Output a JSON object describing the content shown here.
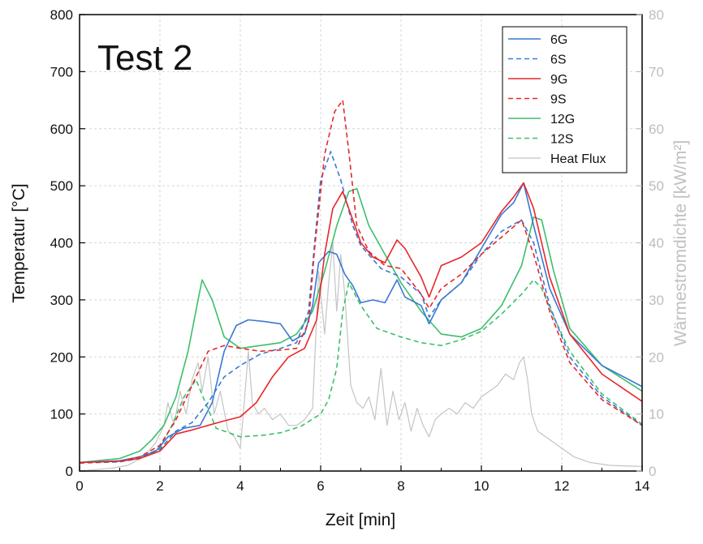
{
  "chart_data": {
    "type": "line",
    "annotation": "Test 2",
    "xlabel": "Zeit [min]",
    "ylabel": "Temperatur [°C]",
    "y2label": "Wärmestromdichte [kW/m²]",
    "xlim": [
      0,
      14
    ],
    "ylim": [
      0,
      800
    ],
    "y2lim": [
      0,
      80
    ],
    "xticks": [
      0,
      2,
      4,
      6,
      8,
      10,
      12,
      14
    ],
    "yticks": [
      0,
      100,
      200,
      300,
      400,
      500,
      600,
      700,
      800
    ],
    "y2ticks": [
      0,
      10,
      20,
      30,
      40,
      50,
      60,
      70,
      80
    ],
    "grid": true,
    "legend_position": "top-right",
    "series": [
      {
        "name": "6G",
        "axis": "left",
        "color": "#3a78d4",
        "dash": "solid",
        "points": [
          [
            0,
            15
          ],
          [
            1,
            18
          ],
          [
            1.5,
            25
          ],
          [
            1.9,
            35
          ],
          [
            2.2,
            60
          ],
          [
            2.6,
            75
          ],
          [
            3,
            80
          ],
          [
            3.3,
            120
          ],
          [
            3.6,
            210
          ],
          [
            3.9,
            255
          ],
          [
            4.2,
            265
          ],
          [
            4.6,
            262
          ],
          [
            5,
            258
          ],
          [
            5.3,
            228
          ],
          [
            5.6,
            240
          ],
          [
            5.8,
            290
          ],
          [
            5.95,
            365
          ],
          [
            6.2,
            385
          ],
          [
            6.4,
            380
          ],
          [
            6.6,
            345
          ],
          [
            6.8,
            325
          ],
          [
            7,
            295
          ],
          [
            7.3,
            300
          ],
          [
            7.6,
            295
          ],
          [
            7.9,
            335
          ],
          [
            8.1,
            305
          ],
          [
            8.5,
            290
          ],
          [
            8.7,
            258
          ],
          [
            9,
            300
          ],
          [
            9.5,
            330
          ],
          [
            10,
            390
          ],
          [
            10.5,
            450
          ],
          [
            10.8,
            470
          ],
          [
            11.05,
            505
          ],
          [
            11.3,
            430
          ],
          [
            11.7,
            320
          ],
          [
            12.2,
            240
          ],
          [
            13,
            185
          ],
          [
            14,
            148
          ]
        ]
      },
      {
        "name": "6S",
        "axis": "left",
        "color": "#3a78d4",
        "dash": "dashed",
        "points": [
          [
            0,
            14
          ],
          [
            1,
            16
          ],
          [
            1.5,
            22
          ],
          [
            2,
            38
          ],
          [
            2.4,
            70
          ],
          [
            2.8,
            85
          ],
          [
            3.2,
            120
          ],
          [
            3.6,
            165
          ],
          [
            4,
            185
          ],
          [
            4.5,
            205
          ],
          [
            5,
            215
          ],
          [
            5.4,
            225
          ],
          [
            5.7,
            280
          ],
          [
            5.85,
            400
          ],
          [
            6,
            510
          ],
          [
            6.25,
            560
          ],
          [
            6.5,
            510
          ],
          [
            6.8,
            430
          ],
          [
            7,
            395
          ],
          [
            7.5,
            355
          ],
          [
            8,
            340
          ],
          [
            8.5,
            310
          ],
          [
            8.7,
            270
          ],
          [
            9,
            300
          ],
          [
            9.5,
            330
          ],
          [
            10,
            380
          ],
          [
            10.5,
            420
          ],
          [
            11,
            440
          ],
          [
            11.3,
            400
          ],
          [
            11.7,
            290
          ],
          [
            12.2,
            200
          ],
          [
            13,
            130
          ],
          [
            14,
            80
          ]
        ]
      },
      {
        "name": "9G",
        "axis": "left",
        "color": "#e8262a",
        "dash": "solid",
        "points": [
          [
            0,
            15
          ],
          [
            1,
            17
          ],
          [
            1.5,
            22
          ],
          [
            2,
            35
          ],
          [
            2.4,
            65
          ],
          [
            2.8,
            72
          ],
          [
            3.2,
            80
          ],
          [
            3.6,
            88
          ],
          [
            4,
            95
          ],
          [
            4.4,
            120
          ],
          [
            4.8,
            165
          ],
          [
            5.2,
            200
          ],
          [
            5.6,
            215
          ],
          [
            5.9,
            265
          ],
          [
            6.1,
            380
          ],
          [
            6.3,
            460
          ],
          [
            6.55,
            490
          ],
          [
            6.8,
            440
          ],
          [
            7,
            400
          ],
          [
            7.3,
            375
          ],
          [
            7.6,
            365
          ],
          [
            7.9,
            405
          ],
          [
            8.1,
            390
          ],
          [
            8.5,
            340
          ],
          [
            8.7,
            305
          ],
          [
            9,
            360
          ],
          [
            9.5,
            375
          ],
          [
            10,
            400
          ],
          [
            10.5,
            455
          ],
          [
            10.8,
            480
          ],
          [
            11.05,
            505
          ],
          [
            11.3,
            460
          ],
          [
            11.7,
            340
          ],
          [
            12.2,
            240
          ],
          [
            13,
            170
          ],
          [
            14,
            122
          ]
        ]
      },
      {
        "name": "9S",
        "axis": "left",
        "color": "#e8262a",
        "dash": "dashed",
        "points": [
          [
            0,
            14
          ],
          [
            1,
            17
          ],
          [
            1.5,
            25
          ],
          [
            2,
            45
          ],
          [
            2.4,
            90
          ],
          [
            2.8,
            150
          ],
          [
            3.2,
            210
          ],
          [
            3.6,
            220
          ],
          [
            4,
            215
          ],
          [
            4.5,
            210
          ],
          [
            5,
            212
          ],
          [
            5.4,
            215
          ],
          [
            5.7,
            260
          ],
          [
            5.85,
            390
          ],
          [
            6.1,
            555
          ],
          [
            6.35,
            630
          ],
          [
            6.55,
            650
          ],
          [
            6.7,
            560
          ],
          [
            6.9,
            430
          ],
          [
            7.2,
            385
          ],
          [
            7.6,
            360
          ],
          [
            8,
            355
          ],
          [
            8.5,
            310
          ],
          [
            8.7,
            285
          ],
          [
            9,
            320
          ],
          [
            9.5,
            345
          ],
          [
            10,
            380
          ],
          [
            10.5,
            410
          ],
          [
            11,
            440
          ],
          [
            11.3,
            380
          ],
          [
            11.7,
            280
          ],
          [
            12.2,
            190
          ],
          [
            13,
            125
          ],
          [
            14,
            80
          ]
        ]
      },
      {
        "name": "12G",
        "axis": "left",
        "color": "#3cbf6a",
        "dash": "solid",
        "points": [
          [
            0,
            15
          ],
          [
            1,
            22
          ],
          [
            1.5,
            35
          ],
          [
            1.8,
            55
          ],
          [
            2.1,
            80
          ],
          [
            2.4,
            130
          ],
          [
            2.7,
            210
          ],
          [
            2.95,
            300
          ],
          [
            3.05,
            335
          ],
          [
            3.3,
            300
          ],
          [
            3.6,
            235
          ],
          [
            4,
            215
          ],
          [
            4.5,
            220
          ],
          [
            5,
            225
          ],
          [
            5.4,
            240
          ],
          [
            5.8,
            280
          ],
          [
            6.1,
            350
          ],
          [
            6.4,
            430
          ],
          [
            6.7,
            490
          ],
          [
            6.9,
            495
          ],
          [
            7.2,
            430
          ],
          [
            7.6,
            380
          ],
          [
            8,
            330
          ],
          [
            8.5,
            280
          ],
          [
            9,
            240
          ],
          [
            9.5,
            235
          ],
          [
            10,
            250
          ],
          [
            10.5,
            290
          ],
          [
            11,
            360
          ],
          [
            11.3,
            445
          ],
          [
            11.5,
            440
          ],
          [
            11.8,
            350
          ],
          [
            12.2,
            250
          ],
          [
            13,
            185
          ],
          [
            14,
            140
          ]
        ]
      },
      {
        "name": "12S",
        "axis": "left",
        "color": "#3cbf6a",
        "dash": "dashed",
        "points": [
          [
            0,
            14
          ],
          [
            1,
            17
          ],
          [
            1.5,
            23
          ],
          [
            2,
            40
          ],
          [
            2.3,
            80
          ],
          [
            2.6,
            130
          ],
          [
            2.9,
            160
          ],
          [
            3.1,
            125
          ],
          [
            3.4,
            75
          ],
          [
            4,
            60
          ],
          [
            4.6,
            63
          ],
          [
            5,
            67
          ],
          [
            5.5,
            78
          ],
          [
            6,
            100
          ],
          [
            6.2,
            125
          ],
          [
            6.4,
            180
          ],
          [
            6.55,
            280
          ],
          [
            6.7,
            330
          ],
          [
            7,
            290
          ],
          [
            7.4,
            250
          ],
          [
            8,
            235
          ],
          [
            8.5,
            225
          ],
          [
            9,
            220
          ],
          [
            9.5,
            230
          ],
          [
            10,
            245
          ],
          [
            10.5,
            275
          ],
          [
            11,
            310
          ],
          [
            11.3,
            335
          ],
          [
            11.5,
            320
          ],
          [
            11.8,
            270
          ],
          [
            12.2,
            210
          ],
          [
            13,
            135
          ],
          [
            14,
            82
          ]
        ]
      },
      {
        "name": "Heat Flux",
        "axis": "right",
        "color": "#c4c4c4",
        "dash": "solid",
        "points": [
          [
            0,
            0
          ],
          [
            0.8,
            0.5
          ],
          [
            1.2,
            1
          ],
          [
            1.6,
            2.5
          ],
          [
            1.9,
            5
          ],
          [
            2.1,
            8
          ],
          [
            2.2,
            12
          ],
          [
            2.35,
            8
          ],
          [
            2.5,
            14
          ],
          [
            2.65,
            10
          ],
          [
            2.8,
            16
          ],
          [
            2.95,
            19
          ],
          [
            3.05,
            14
          ],
          [
            3.2,
            20
          ],
          [
            3.35,
            10
          ],
          [
            3.5,
            14
          ],
          [
            3.7,
            7
          ],
          [
            3.85,
            6
          ],
          [
            4,
            4
          ],
          [
            4.1,
            12
          ],
          [
            4.2,
            21
          ],
          [
            4.3,
            12
          ],
          [
            4.45,
            10
          ],
          [
            4.6,
            11
          ],
          [
            4.8,
            9
          ],
          [
            5,
            10
          ],
          [
            5.2,
            8
          ],
          [
            5.4,
            8
          ],
          [
            5.6,
            9
          ],
          [
            5.8,
            11
          ],
          [
            5.95,
            35
          ],
          [
            6.1,
            24
          ],
          [
            6.2,
            33
          ],
          [
            6.3,
            40
          ],
          [
            6.4,
            28
          ],
          [
            6.5,
            38
          ],
          [
            6.6,
            31
          ],
          [
            6.75,
            15
          ],
          [
            6.9,
            12
          ],
          [
            7.05,
            11
          ],
          [
            7.2,
            13
          ],
          [
            7.35,
            9
          ],
          [
            7.5,
            18
          ],
          [
            7.65,
            8
          ],
          [
            7.8,
            14
          ],
          [
            7.95,
            9
          ],
          [
            8.1,
            12
          ],
          [
            8.25,
            7
          ],
          [
            8.4,
            11
          ],
          [
            8.55,
            8
          ],
          [
            8.7,
            6
          ],
          [
            8.85,
            9
          ],
          [
            9,
            10
          ],
          [
            9.2,
            11
          ],
          [
            9.4,
            10
          ],
          [
            9.6,
            12
          ],
          [
            9.8,
            11
          ],
          [
            10,
            13
          ],
          [
            10.2,
            14
          ],
          [
            10.4,
            15
          ],
          [
            10.6,
            17
          ],
          [
            10.8,
            16
          ],
          [
            10.95,
            19
          ],
          [
            11.05,
            20
          ],
          [
            11.15,
            16
          ],
          [
            11.25,
            10
          ],
          [
            11.4,
            7
          ],
          [
            11.6,
            6
          ],
          [
            11.8,
            5
          ],
          [
            12,
            4
          ],
          [
            12.3,
            2.5
          ],
          [
            12.7,
            1.5
          ],
          [
            13.2,
            1
          ],
          [
            14,
            0.8
          ]
        ]
      }
    ]
  }
}
